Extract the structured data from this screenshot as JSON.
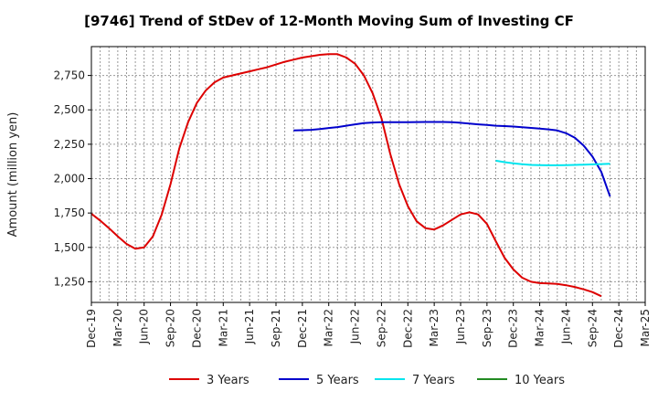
{
  "chart_data": {
    "type": "line",
    "title": "[9746]  Trend of StDev of 12-Month Moving Sum of Investing CF",
    "ylabel": "Amount (million yen)",
    "xlabel": "",
    "ylim": [
      1100,
      2960
    ],
    "yticks": [
      1250,
      1500,
      1750,
      2000,
      2250,
      2500,
      2750
    ],
    "ytick_labels": [
      "1,250",
      "1,500",
      "1,750",
      "2,000",
      "2,250",
      "2,500",
      "2,750"
    ],
    "x_start": "2019-12",
    "x_end": "2025-03",
    "xtick_labels": [
      "Dec-19",
      "Mar-20",
      "Jun-20",
      "Sep-20",
      "Dec-20",
      "Mar-21",
      "Jun-21",
      "Sep-21",
      "Dec-21",
      "Mar-22",
      "Jun-22",
      "Sep-22",
      "Dec-22",
      "Mar-23",
      "Jun-23",
      "Sep-23",
      "Dec-23",
      "Mar-24",
      "Jun-24",
      "Sep-24",
      "Dec-24",
      "Mar-25"
    ],
    "grid": true,
    "legend_position": "bottom",
    "series": [
      {
        "name": "3 Years",
        "color": "#dd0000",
        "points": [
          [
            "2019-12",
            1745
          ],
          [
            "2020-01",
            1695
          ],
          [
            "2020-02",
            1640
          ],
          [
            "2020-03",
            1580
          ],
          [
            "2020-04",
            1525
          ],
          [
            "2020-05",
            1490
          ],
          [
            "2020-06",
            1500
          ],
          [
            "2020-07",
            1580
          ],
          [
            "2020-08",
            1740
          ],
          [
            "2020-09",
            1960
          ],
          [
            "2020-10",
            2220
          ],
          [
            "2020-11",
            2410
          ],
          [
            "2020-12",
            2550
          ],
          [
            "2021-01",
            2640
          ],
          [
            "2021-02",
            2700
          ],
          [
            "2021-03",
            2735
          ],
          [
            "2021-04",
            2750
          ],
          [
            "2021-05",
            2765
          ],
          [
            "2021-06",
            2780
          ],
          [
            "2021-07",
            2795
          ],
          [
            "2021-08",
            2810
          ],
          [
            "2021-09",
            2830
          ],
          [
            "2021-10",
            2850
          ],
          [
            "2021-11",
            2865
          ],
          [
            "2021-12",
            2880
          ],
          [
            "2022-01",
            2890
          ],
          [
            "2022-02",
            2900
          ],
          [
            "2022-03",
            2905
          ],
          [
            "2022-04",
            2905
          ],
          [
            "2022-05",
            2880
          ],
          [
            "2022-06",
            2835
          ],
          [
            "2022-07",
            2750
          ],
          [
            "2022-08",
            2620
          ],
          [
            "2022-09",
            2440
          ],
          [
            "2022-10",
            2180
          ],
          [
            "2022-11",
            1960
          ],
          [
            "2022-12",
            1800
          ],
          [
            "2023-01",
            1690
          ],
          [
            "2023-02",
            1640
          ],
          [
            "2023-03",
            1630
          ],
          [
            "2023-04",
            1660
          ],
          [
            "2023-05",
            1700
          ],
          [
            "2023-06",
            1740
          ],
          [
            "2023-07",
            1755
          ],
          [
            "2023-08",
            1740
          ],
          [
            "2023-09",
            1670
          ],
          [
            "2023-10",
            1545
          ],
          [
            "2023-11",
            1425
          ],
          [
            "2023-12",
            1340
          ],
          [
            "2024-01",
            1280
          ],
          [
            "2024-02",
            1250
          ],
          [
            "2024-03",
            1240
          ],
          [
            "2024-04",
            1238
          ],
          [
            "2024-05",
            1235
          ],
          [
            "2024-06",
            1225
          ],
          [
            "2024-07",
            1212
          ],
          [
            "2024-08",
            1195
          ],
          [
            "2024-09",
            1175
          ],
          [
            "2024-10",
            1145
          ]
        ]
      },
      {
        "name": "5 Years",
        "color": "#0000cc",
        "points": [
          [
            "2021-11",
            2350
          ],
          [
            "2021-12",
            2352
          ],
          [
            "2022-01",
            2355
          ],
          [
            "2022-02",
            2360
          ],
          [
            "2022-03",
            2368
          ],
          [
            "2022-04",
            2375
          ],
          [
            "2022-05",
            2385
          ],
          [
            "2022-06",
            2395
          ],
          [
            "2022-07",
            2403
          ],
          [
            "2022-08",
            2408
          ],
          [
            "2022-09",
            2410
          ],
          [
            "2022-10",
            2410
          ],
          [
            "2022-11",
            2410
          ],
          [
            "2022-12",
            2410
          ],
          [
            "2023-01",
            2411
          ],
          [
            "2023-02",
            2412
          ],
          [
            "2023-03",
            2412
          ],
          [
            "2023-04",
            2412
          ],
          [
            "2023-05",
            2410
          ],
          [
            "2023-06",
            2406
          ],
          [
            "2023-07",
            2400
          ],
          [
            "2023-08",
            2395
          ],
          [
            "2023-09",
            2390
          ],
          [
            "2023-10",
            2385
          ],
          [
            "2023-11",
            2382
          ],
          [
            "2023-12",
            2379
          ],
          [
            "2024-01",
            2374
          ],
          [
            "2024-02",
            2369
          ],
          [
            "2024-03",
            2364
          ],
          [
            "2024-04",
            2358
          ],
          [
            "2024-05",
            2350
          ],
          [
            "2024-06",
            2330
          ],
          [
            "2024-07",
            2297
          ],
          [
            "2024-08",
            2240
          ],
          [
            "2024-09",
            2160
          ],
          [
            "2024-10",
            2050
          ],
          [
            "2024-11",
            1870
          ]
        ]
      },
      {
        "name": "7 Years",
        "color": "#00e5ee",
        "points": [
          [
            "2023-10",
            2130
          ],
          [
            "2023-11",
            2120
          ],
          [
            "2023-12",
            2112
          ],
          [
            "2024-01",
            2105
          ],
          [
            "2024-02",
            2100
          ],
          [
            "2024-03",
            2098
          ],
          [
            "2024-04",
            2097
          ],
          [
            "2024-05",
            2097
          ],
          [
            "2024-06",
            2098
          ],
          [
            "2024-07",
            2100
          ],
          [
            "2024-08",
            2102
          ],
          [
            "2024-09",
            2104
          ],
          [
            "2024-10",
            2106
          ],
          [
            "2024-11",
            2108
          ]
        ]
      },
      {
        "name": "10 Years",
        "color": "#228b22",
        "points": []
      }
    ]
  }
}
